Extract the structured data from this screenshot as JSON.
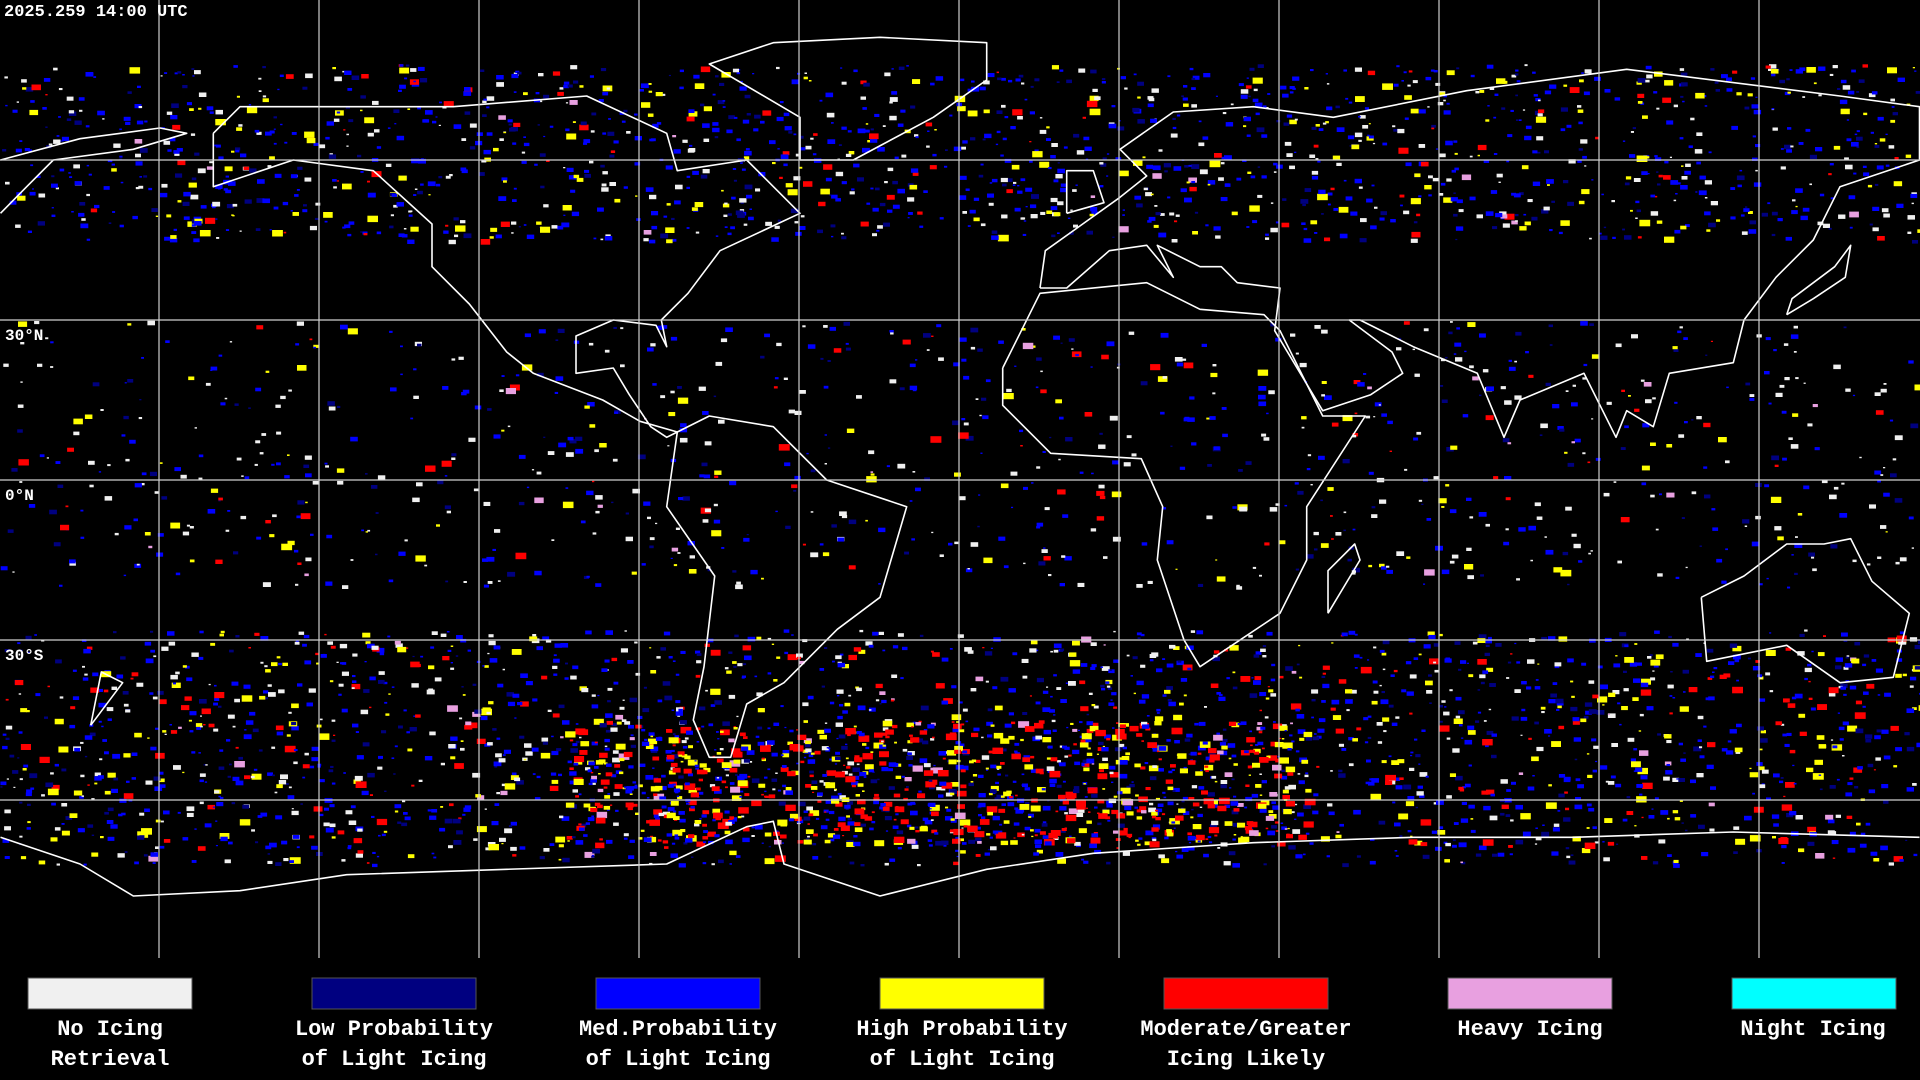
{
  "header": {
    "timestamp": "2025.259 14:00 UTC"
  },
  "latitude_labels": [
    "30°N",
    "0°N",
    "30°S"
  ],
  "legend": {
    "items": [
      {
        "lines": [
          "No Icing",
          "Retrieval"
        ],
        "color": "#f0f0f0"
      },
      {
        "lines": [
          "Low Probability",
          "of Light Icing"
        ],
        "color": "#000080"
      },
      {
        "lines": [
          "Med.Probability",
          "of Light Icing"
        ],
        "color": "#0000ff"
      },
      {
        "lines": [
          "High Probability",
          "of Light Icing"
        ],
        "color": "#ffff00"
      },
      {
        "lines": [
          "Moderate/Greater",
          "Icing Likely"
        ],
        "color": "#ff0000"
      },
      {
        "lines": [
          "Heavy Icing"
        ],
        "color": "#e8a0e0"
      },
      {
        "lines": [
          "Night Icing"
        ],
        "color": "#00ffff"
      }
    ]
  }
}
